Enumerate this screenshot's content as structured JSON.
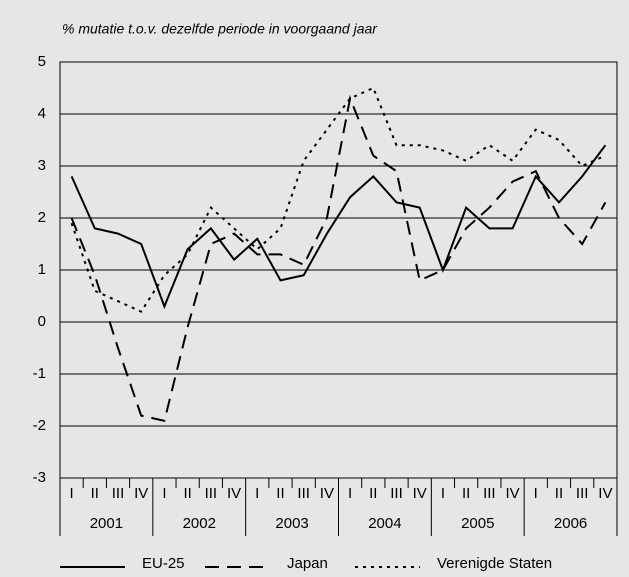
{
  "chart_data": {
    "type": "line",
    "subtitle": "% mutatie t.o.v. dezelfde periode in voorgaand jaar",
    "categories": [
      "I",
      "II",
      "III",
      "IV",
      "I",
      "II",
      "III",
      "IV",
      "I",
      "II",
      "III",
      "IV",
      "I",
      "II",
      "III",
      "IV",
      "I",
      "II",
      "III",
      "IV",
      "I",
      "II",
      "III",
      "IV"
    ],
    "years": [
      "2001",
      "2002",
      "2003",
      "2004",
      "2005",
      "2006"
    ],
    "series": [
      {
        "name": "EU-25",
        "color": "#000000",
        "style": "solid",
        "values": [
          2.8,
          1.8,
          1.7,
          1.5,
          0.3,
          1.4,
          1.8,
          1.2,
          1.6,
          0.8,
          0.9,
          1.7,
          2.4,
          2.8,
          2.3,
          2.2,
          1.0,
          2.2,
          1.8,
          1.8,
          2.8,
          2.3,
          2.8,
          3.4
        ]
      },
      {
        "name": "Japan",
        "color": "#000000",
        "style": "dashed",
        "values": [
          2.0,
          0.9,
          -0.5,
          -1.8,
          -1.9,
          -0.1,
          1.5,
          1.7,
          1.3,
          1.3,
          1.1,
          2.0,
          4.3,
          3.2,
          2.9,
          0.8,
          1.0,
          1.8,
          2.2,
          2.7,
          2.9,
          2.0,
          1.5,
          2.3
        ]
      },
      {
        "name": "Verenigde Staten",
        "color": "#000000",
        "style": "dotted",
        "values": [
          1.9,
          0.6,
          0.4,
          0.2,
          0.9,
          1.3,
          2.2,
          1.8,
          1.4,
          1.8,
          3.1,
          3.7,
          4.3,
          4.5,
          3.4,
          3.4,
          3.3,
          3.1,
          3.4,
          3.1,
          3.7,
          3.5,
          3.0,
          3.2
        ]
      }
    ],
    "ylim": [
      -3,
      5
    ],
    "yticks": [
      -3,
      -2,
      -1,
      0,
      1,
      2,
      3,
      4,
      5
    ],
    "grid": true
  }
}
